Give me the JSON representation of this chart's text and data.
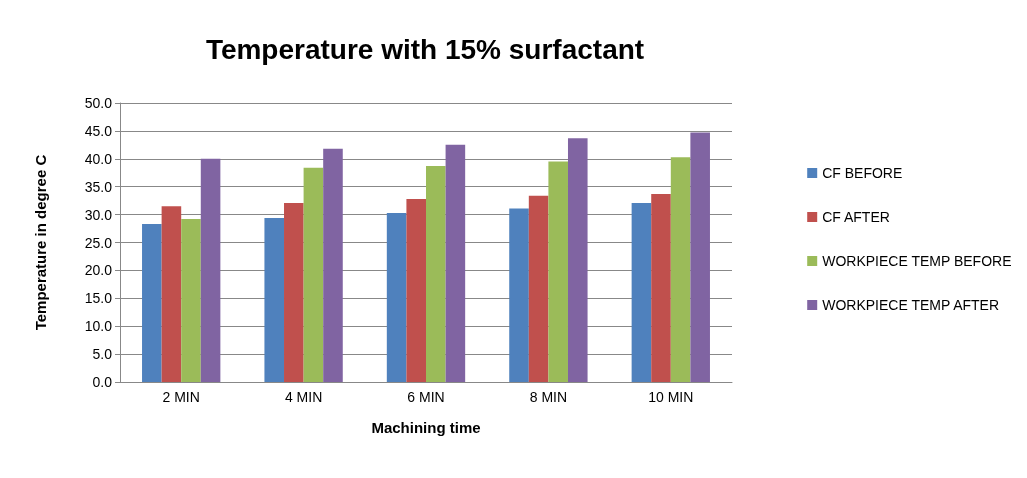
{
  "chart_data": {
    "type": "bar",
    "title": "Temperature with 15% surfactant",
    "xlabel": "Machining time",
    "ylabel": "Temperature in degree C",
    "categories": [
      "2 MIN",
      "4 MIN",
      "6 MIN",
      "8 MIN",
      "10 MIN"
    ],
    "series": [
      {
        "name": "CF BEFORE",
        "color": "#4f81bd",
        "values": [
          28.3,
          29.4,
          30.3,
          31.1,
          32.1
        ]
      },
      {
        "name": "CF AFTER",
        "color": "#c0504d",
        "values": [
          31.5,
          32.1,
          32.8,
          33.4,
          33.7
        ]
      },
      {
        "name": "WORKPIECE TEMP BEFORE",
        "color": "#9bbb59",
        "values": [
          29.2,
          38.4,
          38.7,
          39.5,
          40.3
        ]
      },
      {
        "name": "WORKPIECE TEMP AFTER",
        "color": "#8064a2",
        "values": [
          40.0,
          41.8,
          42.5,
          43.7,
          44.7
        ]
      }
    ],
    "ylim": [
      0,
      50
    ],
    "yticks": [
      {
        "value": 0,
        "label": "0.0"
      },
      {
        "value": 5,
        "label": "5.0"
      },
      {
        "value": 10,
        "label": "10.0"
      },
      {
        "value": 15,
        "label": "15.0"
      },
      {
        "value": 20,
        "label": "20.0"
      },
      {
        "value": 25,
        "label": "25.0"
      },
      {
        "value": 30,
        "label": "30.0"
      },
      {
        "value": 35,
        "label": "35.0"
      },
      {
        "value": 40,
        "label": "40.0"
      },
      {
        "value": 45,
        "label": "45.0"
      },
      {
        "value": 50,
        "label": "50.0"
      }
    ],
    "grid": "y",
    "legend": "right"
  }
}
